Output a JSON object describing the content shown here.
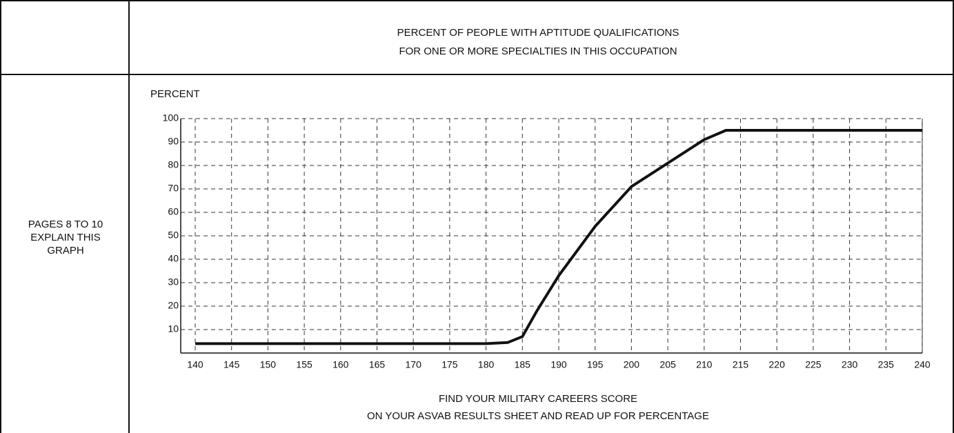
{
  "chart_data": {
    "type": "line",
    "title": [
      "PERCENT OF PEOPLE WITH APTITUDE QUALIFICATIONS",
      "FOR ONE OR MORE SPECIALTIES IN THIS OCCUPATION"
    ],
    "side_note": [
      "PAGES 8 TO 10",
      "EXPLAIN THIS",
      "GRAPH"
    ],
    "y_label": "PERCENT",
    "x_label": [
      "FIND YOUR MILITARY CAREERS SCORE",
      "ON YOUR ASVAB RESULTS SHEET AND READ UP FOR PERCENTAGE"
    ],
    "x": [
      140,
      150,
      160,
      170,
      180,
      183,
      185,
      187,
      190,
      195,
      200,
      205,
      210,
      213,
      215,
      220,
      230,
      240
    ],
    "series": [
      {
        "name": "Percent qualified",
        "color": "#111111",
        "values": [
          4,
          4,
          4,
          4,
          4,
          4.5,
          7,
          18,
          33,
          54,
          71,
          81,
          91,
          95,
          95,
          95,
          95,
          95
        ]
      }
    ],
    "xlim": [
      140,
      240
    ],
    "xticks": [
      140,
      145,
      150,
      155,
      160,
      165,
      170,
      175,
      180,
      185,
      190,
      195,
      200,
      205,
      210,
      215,
      220,
      225,
      230,
      235,
      240
    ],
    "ylim": [
      0,
      100
    ],
    "yticks": [
      10,
      20,
      30,
      40,
      50,
      60,
      70,
      80,
      90,
      100
    ],
    "grid": true
  }
}
